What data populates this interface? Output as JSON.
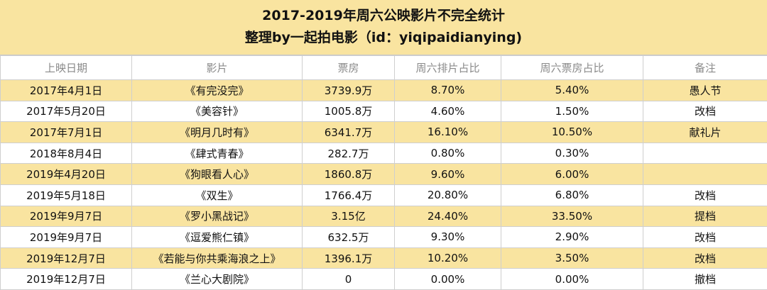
{
  "header": {
    "title": "2017-2019年周六公映影片不完全统计",
    "subtitle": "整理by一起拍电影（id：yiqipaidianying)"
  },
  "table": {
    "columns": [
      "上映日期",
      "影片",
      "票房",
      "周六排片占比",
      "周六票房占比",
      "备注"
    ],
    "rows": [
      [
        "2017年4月1日",
        "《有完没完》",
        "3739.9万",
        "8.70%",
        "5.40%",
        "愚人节"
      ],
      [
        "2017年5月20日",
        "《美容针》",
        "1005.8万",
        "4.60%",
        "1.50%",
        "改档"
      ],
      [
        "2017年7月1日",
        "《明月几时有》",
        "6341.7万",
        "16.10%",
        "10.50%",
        "献礼片"
      ],
      [
        "2018年8月4日",
        "《肆式青春》",
        "282.7万",
        "0.80%",
        "0.30%"
      ],
      [
        "2019年4月20日",
        "《狗眼看人心》",
        "1860.8万",
        "9.60%",
        "6.00%"
      ],
      [
        "2019年5月18日",
        "《双生》",
        "1766.4万",
        "20.80%",
        "6.80%",
        "改档"
      ],
      [
        "2019年9月7日",
        "《罗小黑战记》",
        "3.15亿",
        "24.40%",
        "33.50%",
        "提档"
      ],
      [
        "2019年9月7日",
        "《逗爱熊仁镇》",
        "632.5万",
        "9.30%",
        "2.90%",
        "改档"
      ],
      [
        "2019年12月7日",
        "《若能与你共乘海浪之上》",
        "1396.1万",
        "10.20%",
        "3.50%",
        "改档"
      ],
      [
        "2019年12月7日",
        "《兰心大剧院》",
        "0",
        "0.00%",
        "0.00%",
        "撤档"
      ]
    ]
  }
}
